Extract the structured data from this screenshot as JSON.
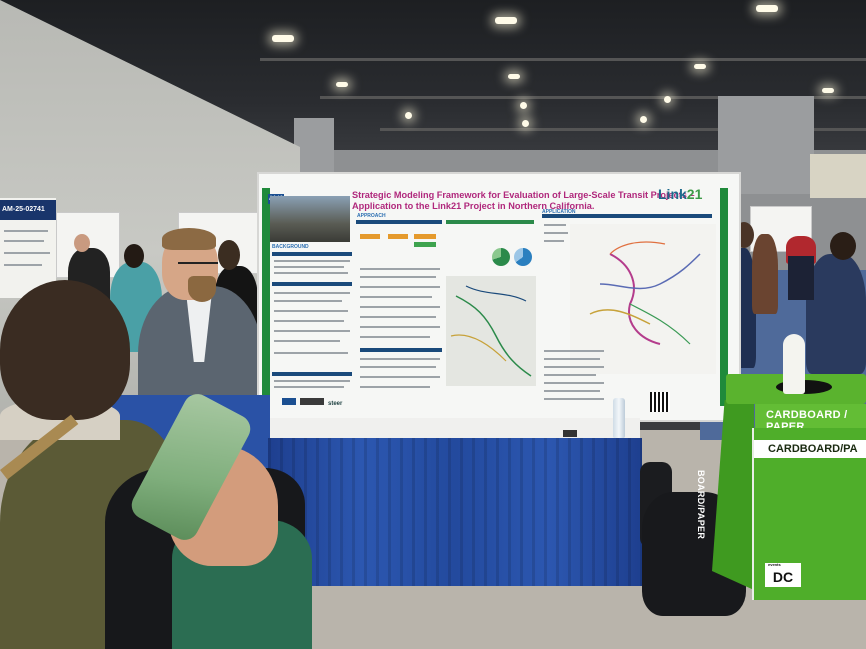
{
  "poster": {
    "id": "A146",
    "title": "Strategic Modeling Framework for Evaluation of Large-Scale Transit Projects – Application to the Link21 Project in Northern California.",
    "logo_main": "Link",
    "logo_num": "21",
    "section_approach": "APPROACH",
    "section_application": "APPLICATION",
    "section_background": "BACKGROUND",
    "sponsor_logos": "steer"
  },
  "left_poster": {
    "code": "AM-25-02741"
  },
  "bin": {
    "top_label": "CARDBOARD / PAPER",
    "front_label": "CARDBOARD/PA",
    "side_label": "BOARD/PAPER",
    "brand": "DC",
    "brand_small": "events"
  },
  "colors": {
    "title_magenta": "#b0287c",
    "poster_green": "#1f8a3b",
    "skirt_blue": "#2c57b0",
    "bin_green": "#4fae2a"
  }
}
